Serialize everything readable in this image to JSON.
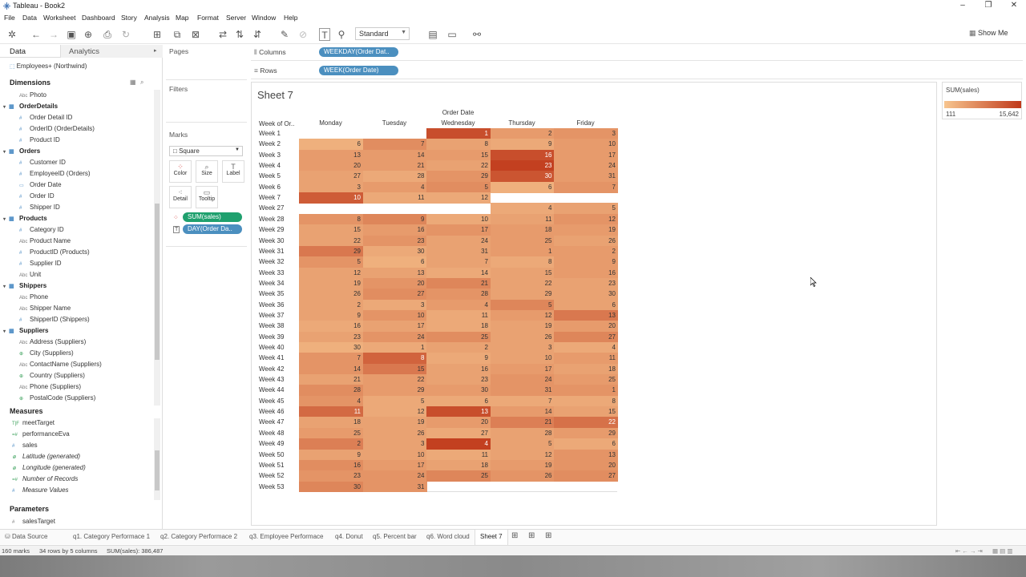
{
  "window": {
    "title": "Tableau - Book2",
    "buttons": [
      "–",
      "❐",
      "✕"
    ]
  },
  "menu": [
    "File",
    "Data",
    "Worksheet",
    "Dashboard",
    "Story",
    "Analysis",
    "Map",
    "Format",
    "Server",
    "Window",
    "Help"
  ],
  "toolbar": {
    "fit": "Standard",
    "show_me": "Show Me"
  },
  "data_pane": {
    "tab_data": "Data",
    "tab_analytics": "Analytics",
    "datasource": "Employees+ (Northwind)",
    "dimensions_label": "Dimensions",
    "measures_label": "Measures",
    "parameters_label": "Parameters",
    "dimension_items": [
      {
        "t": "field",
        "icon": "Abc",
        "name": "Photo"
      },
      {
        "t": "group",
        "name": "OrderDetails"
      },
      {
        "t": "field",
        "icon": "#",
        "name": "Order Detail ID"
      },
      {
        "t": "field",
        "icon": "#",
        "name": "OrderID (OrderDetails)"
      },
      {
        "t": "field",
        "icon": "#",
        "name": "Product ID"
      },
      {
        "t": "group",
        "name": "Orders"
      },
      {
        "t": "field",
        "icon": "#",
        "name": "Customer ID"
      },
      {
        "t": "field",
        "icon": "#",
        "name": "EmployeeID (Orders)"
      },
      {
        "t": "field",
        "icon": "date",
        "name": "Order Date"
      },
      {
        "t": "field",
        "icon": "#",
        "name": "Order ID"
      },
      {
        "t": "field",
        "icon": "#",
        "name": "Shipper ID"
      },
      {
        "t": "group",
        "name": "Products"
      },
      {
        "t": "field",
        "icon": "#",
        "name": "Category ID"
      },
      {
        "t": "field",
        "icon": "Abc",
        "name": "Product Name"
      },
      {
        "t": "field",
        "icon": "#",
        "name": "ProductID (Products)"
      },
      {
        "t": "field",
        "icon": "#",
        "name": "Supplier ID"
      },
      {
        "t": "field",
        "icon": "Abc",
        "name": "Unit"
      },
      {
        "t": "group",
        "name": "Shippers"
      },
      {
        "t": "field",
        "icon": "Abc",
        "name": "Phone"
      },
      {
        "t": "field",
        "icon": "Abc",
        "name": "Shipper Name"
      },
      {
        "t": "field",
        "icon": "#",
        "name": "ShipperID (Shippers)"
      },
      {
        "t": "group",
        "name": "Suppliers"
      },
      {
        "t": "field",
        "icon": "Abc",
        "name": "Address (Suppliers)"
      },
      {
        "t": "field",
        "icon": "geo",
        "name": "City (Suppliers)"
      },
      {
        "t": "field",
        "icon": "Abc",
        "name": "ContactName (Suppliers)"
      },
      {
        "t": "field",
        "icon": "geo",
        "name": "Country (Suppliers)"
      },
      {
        "t": "field",
        "icon": "Abc",
        "name": "Phone (Suppliers)"
      },
      {
        "t": "field",
        "icon": "geo",
        "name": "PostalCode (Suppliers)"
      }
    ],
    "measure_items": [
      {
        "icon": "T|F",
        "name": "meetTarget",
        "italic": false
      },
      {
        "icon": "=#",
        "name": "performanceEva",
        "italic": false
      },
      {
        "icon": "#",
        "name": "sales",
        "italic": false
      },
      {
        "icon": "geo",
        "name": "Latitude (generated)",
        "italic": true
      },
      {
        "icon": "geo",
        "name": "Longitude (generated)",
        "italic": true
      },
      {
        "icon": "=#",
        "name": "Number of Records",
        "italic": true
      },
      {
        "icon": "#",
        "name": "Measure Values",
        "italic": true
      }
    ],
    "parameter_items": [
      {
        "icon": "#",
        "name": "salesTarget"
      }
    ]
  },
  "cards": {
    "pages": "Pages",
    "filters": "Filters",
    "marks": "Marks",
    "mark_type": "Square",
    "mark_buttons": [
      "Color",
      "Size",
      "Label",
      "Detail",
      "Tooltip"
    ],
    "mark_pills": [
      "SUM(sales)",
      "DAY(Order Da.."
    ]
  },
  "shelves": {
    "columns_label": "Columns",
    "columns_pill": "WEEKDAY(Order Dat..",
    "rows_label": "Rows",
    "rows_pill": "WEEK(Order Date)"
  },
  "sheet": {
    "title": "Sheet 7",
    "col_group_header": "Order Date",
    "row_field_header": "Week of Or..",
    "columns": [
      "Monday",
      "Tuesday",
      "Wednesday",
      "Thursday",
      "Friday"
    ]
  },
  "legend": {
    "title": "SUM(sales)",
    "min": "111",
    "max": "15,642",
    "color_low": "#f7c58f",
    "color_high": "#c0391a"
  },
  "chart_data": {
    "type": "heatmap",
    "x": [
      "Monday",
      "Tuesday",
      "Wednesday",
      "Thursday",
      "Friday"
    ],
    "xlabel": "Order Date",
    "ylabel": "Week of Or..",
    "y": [
      "Week 1",
      "Week 2",
      "Week 3",
      "Week 4",
      "Week 5",
      "Week 6",
      "Week 7",
      "Week 27",
      "Week 28",
      "Week 29",
      "Week 30",
      "Week 31",
      "Week 32",
      "Week 33",
      "Week 34",
      "Week 35",
      "Week 36",
      "Week 37",
      "Week 38",
      "Week 39",
      "Week 40",
      "Week 41",
      "Week 42",
      "Week 43",
      "Week 44",
      "Week 45",
      "Week 46",
      "Week 47",
      "Week 48",
      "Week 49",
      "Week 50",
      "Week 51",
      "Week 52",
      "Week 53"
    ],
    "labels": [
      [
        null,
        null,
        1,
        2,
        3
      ],
      [
        6,
        7,
        8,
        9,
        10
      ],
      [
        13,
        14,
        15,
        16,
        17
      ],
      [
        20,
        21,
        22,
        23,
        24
      ],
      [
        27,
        28,
        29,
        30,
        31
      ],
      [
        3,
        4,
        5,
        6,
        7
      ],
      [
        10,
        11,
        12,
        null,
        null
      ],
      [
        null,
        null,
        null,
        4,
        5
      ],
      [
        8,
        9,
        10,
        11,
        12
      ],
      [
        15,
        16,
        17,
        18,
        19
      ],
      [
        22,
        23,
        24,
        25,
        26
      ],
      [
        29,
        30,
        31,
        1,
        2
      ],
      [
        5,
        6,
        7,
        8,
        9
      ],
      [
        12,
        13,
        14,
        15,
        16
      ],
      [
        19,
        20,
        21,
        22,
        23
      ],
      [
        26,
        27,
        28,
        29,
        30
      ],
      [
        2,
        3,
        4,
        5,
        6
      ],
      [
        9,
        10,
        11,
        12,
        13
      ],
      [
        16,
        17,
        18,
        19,
        20
      ],
      [
        23,
        24,
        25,
        26,
        27
      ],
      [
        30,
        1,
        2,
        3,
        4
      ],
      [
        7,
        8,
        9,
        10,
        11
      ],
      [
        14,
        15,
        16,
        17,
        18
      ],
      [
        21,
        22,
        23,
        24,
        25
      ],
      [
        28,
        29,
        30,
        31,
        1
      ],
      [
        4,
        5,
        6,
        7,
        8
      ],
      [
        11,
        12,
        13,
        14,
        15
      ],
      [
        18,
        19,
        20,
        21,
        22
      ],
      [
        25,
        26,
        27,
        28,
        29
      ],
      [
        2,
        3,
        4,
        5,
        6
      ],
      [
        9,
        10,
        11,
        12,
        13
      ],
      [
        16,
        17,
        18,
        19,
        20
      ],
      [
        23,
        24,
        25,
        26,
        27
      ],
      [
        30,
        31,
        null,
        null,
        null
      ]
    ],
    "intensity": [
      [
        null,
        null,
        0.85,
        0.3,
        0.35
      ],
      [
        0.15,
        0.4,
        0.25,
        0.2,
        0.3
      ],
      [
        0.3,
        0.3,
        0.3,
        0.85,
        0.3
      ],
      [
        0.3,
        0.3,
        0.25,
        0.95,
        0.3
      ],
      [
        0.25,
        0.2,
        0.35,
        0.8,
        0.3
      ],
      [
        0.25,
        0.3,
        0.4,
        0.15,
        0.35
      ],
      [
        0.75,
        0.2,
        0.2,
        null,
        null
      ],
      [
        null,
        null,
        null,
        0.2,
        0.25
      ],
      [
        0.35,
        0.45,
        0.2,
        0.25,
        0.35
      ],
      [
        0.25,
        0.3,
        0.35,
        0.3,
        0.3
      ],
      [
        0.25,
        0.35,
        0.25,
        0.3,
        0.25
      ],
      [
        0.55,
        0.2,
        0.25,
        0.3,
        0.3
      ],
      [
        0.35,
        0.15,
        0.25,
        0.2,
        0.3
      ],
      [
        0.25,
        0.25,
        0.2,
        0.25,
        0.3
      ],
      [
        0.25,
        0.35,
        0.45,
        0.25,
        0.25
      ],
      [
        0.25,
        0.4,
        0.35,
        0.25,
        0.25
      ],
      [
        0.25,
        0.2,
        0.3,
        0.45,
        0.25
      ],
      [
        0.25,
        0.35,
        0.2,
        0.3,
        0.55
      ],
      [
        0.2,
        0.25,
        0.2,
        0.25,
        0.3
      ],
      [
        0.25,
        0.35,
        0.4,
        0.25,
        0.45
      ],
      [
        0.15,
        0.2,
        0.25,
        0.25,
        0.2
      ],
      [
        0.35,
        0.7,
        0.2,
        0.25,
        0.3
      ],
      [
        0.35,
        0.55,
        0.25,
        0.3,
        0.25
      ],
      [
        0.25,
        0.3,
        0.25,
        0.35,
        0.3
      ],
      [
        0.4,
        0.3,
        0.3,
        0.35,
        0.35
      ],
      [
        0.35,
        0.2,
        0.2,
        0.2,
        0.2
      ],
      [
        0.65,
        0.2,
        0.85,
        0.3,
        0.25
      ],
      [
        0.25,
        0.25,
        0.3,
        0.5,
        0.6
      ],
      [
        0.3,
        0.25,
        0.2,
        0.25,
        0.3
      ],
      [
        0.5,
        0.25,
        0.95,
        0.25,
        0.2
      ],
      [
        0.25,
        0.25,
        0.2,
        0.25,
        0.35
      ],
      [
        0.4,
        0.3,
        0.25,
        0.3,
        0.35
      ],
      [
        0.35,
        0.35,
        0.45,
        0.35,
        0.4
      ],
      [
        0.45,
        0.35,
        null,
        null,
        null
      ]
    ]
  },
  "sheet_tabs": [
    "Data Source",
    "q1. Category Performace 1",
    "q2. Category Performace 2",
    "q3. Employee Performace",
    "q4. Donut",
    "q5. Percent bar",
    "q6. Word cloud",
    "Sheet 7"
  ],
  "status": {
    "marks": "160 marks",
    "dims": "34 rows by 5 columns",
    "sum": "SUM(sales): 386,487"
  }
}
